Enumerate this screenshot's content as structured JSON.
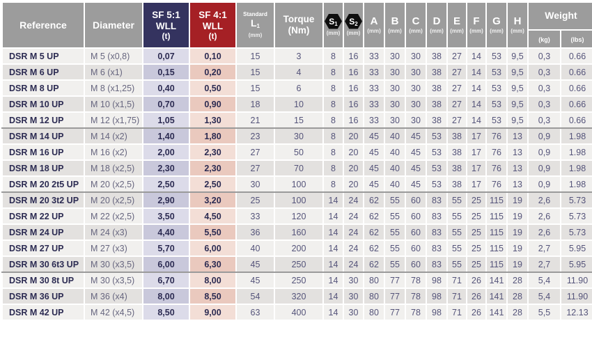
{
  "colors": {
    "header_gray": "#9c9c9c",
    "sf5_navy": "#34335f",
    "sf4_red": "#a52025",
    "sf5_cell_odd": "#dcdbe9",
    "sf5_cell_even": "#c9c8db",
    "sf4_cell_odd": "#f3ded6",
    "sf4_cell_even": "#eac9be",
    "row_odd": "#f1f0ee",
    "row_even": "#e3e1df",
    "text_dark_navy": "#2c2b52",
    "text_value": "#55547a",
    "group_divider": "#9a9a9a"
  },
  "table": {
    "headers": {
      "reference": "Reference",
      "diameter": "Diameter",
      "sf5": {
        "line1": "SF 5:1",
        "line2": "WLL",
        "line3": "(t)"
      },
      "sf4": {
        "line1": "SF 4:1",
        "line2": "WLL",
        "line3": "(t)"
      },
      "l1": {
        "top": "Standard",
        "label": "L",
        "sub": "1",
        "unit": "(mm)"
      },
      "torque": {
        "line1": "Torque",
        "line2": "(Nm)"
      },
      "s1": {
        "label": "S",
        "sub": "1",
        "unit": "(mm)"
      },
      "s2": {
        "label": "S",
        "sub": "2",
        "unit": "(mm)"
      },
      "dims": [
        "A",
        "B",
        "C",
        "D",
        "E",
        "F",
        "G",
        "H"
      ],
      "dim_unit": "(mm)",
      "weight": {
        "label": "Weight",
        "kg": "(kg)",
        "lbs": "(lbs)"
      }
    },
    "rows": [
      {
        "reference": "DSR M 5 UP",
        "diameter": "M 5 (x0,8)",
        "sf5_wll": "0,07",
        "sf4_wll": "0,10",
        "l1": "15",
        "torque": "3",
        "s1": "8",
        "s2": "16",
        "a": "33",
        "b": "30",
        "c": "30",
        "d": "38",
        "e": "27",
        "f": "14",
        "g": "53",
        "h": "9,5",
        "kg": "0,3",
        "lbs": "0.66",
        "group": 1
      },
      {
        "reference": "DSR M 6 UP",
        "diameter": "M 6 (x1)",
        "sf5_wll": "0,15",
        "sf4_wll": "0,20",
        "l1": "15",
        "torque": "4",
        "s1": "8",
        "s2": "16",
        "a": "33",
        "b": "30",
        "c": "30",
        "d": "38",
        "e": "27",
        "f": "14",
        "g": "53",
        "h": "9,5",
        "kg": "0,3",
        "lbs": "0.66",
        "group": 1
      },
      {
        "reference": "DSR M 8 UP",
        "diameter": "M 8 (x1,25)",
        "sf5_wll": "0,40",
        "sf4_wll": "0,50",
        "l1": "15",
        "torque": "6",
        "s1": "8",
        "s2": "16",
        "a": "33",
        "b": "30",
        "c": "30",
        "d": "38",
        "e": "27",
        "f": "14",
        "g": "53",
        "h": "9,5",
        "kg": "0,3",
        "lbs": "0.66",
        "group": 1
      },
      {
        "reference": "DSR M 10 UP",
        "diameter": "M 10 (x1,5)",
        "sf5_wll": "0,70",
        "sf4_wll": "0,90",
        "l1": "18",
        "torque": "10",
        "s1": "8",
        "s2": "16",
        "a": "33",
        "b": "30",
        "c": "30",
        "d": "38",
        "e": "27",
        "f": "14",
        "g": "53",
        "h": "9,5",
        "kg": "0,3",
        "lbs": "0.66",
        "group": 1
      },
      {
        "reference": "DSR M 12 UP",
        "diameter": "M 12 (x1,75)",
        "sf5_wll": "1,05",
        "sf4_wll": "1,30",
        "l1": "21",
        "torque": "15",
        "s1": "8",
        "s2": "16",
        "a": "33",
        "b": "30",
        "c": "30",
        "d": "38",
        "e": "27",
        "f": "14",
        "g": "53",
        "h": "9,5",
        "kg": "0,3",
        "lbs": "0.66",
        "group": 1
      },
      {
        "reference": "DSR M 14 UP",
        "diameter": "M 14 (x2)",
        "sf5_wll": "1,40",
        "sf4_wll": "1,80",
        "l1": "23",
        "torque": "30",
        "s1": "8",
        "s2": "20",
        "a": "45",
        "b": "40",
        "c": "45",
        "d": "53",
        "e": "38",
        "f": "17",
        "g": "76",
        "h": "13",
        "kg": "0,9",
        "lbs": "1.98",
        "group": 2
      },
      {
        "reference": "DSR M 16 UP",
        "diameter": "M 16 (x2)",
        "sf5_wll": "2,00",
        "sf4_wll": "2,30",
        "l1": "27",
        "torque": "50",
        "s1": "8",
        "s2": "20",
        "a": "45",
        "b": "40",
        "c": "45",
        "d": "53",
        "e": "38",
        "f": "17",
        "g": "76",
        "h": "13",
        "kg": "0,9",
        "lbs": "1.98",
        "group": 2
      },
      {
        "reference": "DSR M 18 UP",
        "diameter": "M 18 (x2,5)",
        "sf5_wll": "2,30",
        "sf4_wll": "2,30",
        "l1": "27",
        "torque": "70",
        "s1": "8",
        "s2": "20",
        "a": "45",
        "b": "40",
        "c": "45",
        "d": "53",
        "e": "38",
        "f": "17",
        "g": "76",
        "h": "13",
        "kg": "0,9",
        "lbs": "1.98",
        "group": 2
      },
      {
        "reference": "DSR M 20 2t5 UP",
        "diameter": "M 20 (x2,5)",
        "sf5_wll": "2,50",
        "sf4_wll": "2,50",
        "l1": "30",
        "torque": "100",
        "s1": "8",
        "s2": "20",
        "a": "45",
        "b": "40",
        "c": "45",
        "d": "53",
        "e": "38",
        "f": "17",
        "g": "76",
        "h": "13",
        "kg": "0,9",
        "lbs": "1.98",
        "group": 2
      },
      {
        "reference": "DSR M 20 3t2 UP",
        "diameter": "M 20 (x2,5)",
        "sf5_wll": "2,90",
        "sf4_wll": "3,20",
        "l1": "25",
        "torque": "100",
        "s1": "14",
        "s2": "24",
        "a": "62",
        "b": "55",
        "c": "60",
        "d": "83",
        "e": "55",
        "f": "25",
        "g": "115",
        "h": "19",
        "kg": "2,6",
        "lbs": "5.73",
        "group": 3
      },
      {
        "reference": "DSR M 22 UP",
        "diameter": "M 22 (x2,5)",
        "sf5_wll": "3,50",
        "sf4_wll": "4,50",
        "l1": "33",
        "torque": "120",
        "s1": "14",
        "s2": "24",
        "a": "62",
        "b": "55",
        "c": "60",
        "d": "83",
        "e": "55",
        "f": "25",
        "g": "115",
        "h": "19",
        "kg": "2,6",
        "lbs": "5.73",
        "group": 3
      },
      {
        "reference": "DSR M 24 UP",
        "diameter": "M 24 (x3)",
        "sf5_wll": "4,40",
        "sf4_wll": "5,50",
        "l1": "36",
        "torque": "160",
        "s1": "14",
        "s2": "24",
        "a": "62",
        "b": "55",
        "c": "60",
        "d": "83",
        "e": "55",
        "f": "25",
        "g": "115",
        "h": "19",
        "kg": "2,6",
        "lbs": "5.73",
        "group": 3
      },
      {
        "reference": "DSR M 27 UP",
        "diameter": "M 27 (x3)",
        "sf5_wll": "5,70",
        "sf4_wll": "6,00",
        "l1": "40",
        "torque": "200",
        "s1": "14",
        "s2": "24",
        "a": "62",
        "b": "55",
        "c": "60",
        "d": "83",
        "e": "55",
        "f": "25",
        "g": "115",
        "h": "19",
        "kg": "2,7",
        "lbs": "5.95",
        "group": 3
      },
      {
        "reference": "DSR M 30 6t3 UP",
        "diameter": "M 30 (x3,5)",
        "sf5_wll": "6,00",
        "sf4_wll": "6,30",
        "l1": "45",
        "torque": "250",
        "s1": "14",
        "s2": "24",
        "a": "62",
        "b": "55",
        "c": "60",
        "d": "83",
        "e": "55",
        "f": "25",
        "g": "115",
        "h": "19",
        "kg": "2,7",
        "lbs": "5.95",
        "group": 3
      },
      {
        "reference": "DSR M 30 8t UP",
        "diameter": "M 30 (x3,5)",
        "sf5_wll": "6,70",
        "sf4_wll": "8,00",
        "l1": "45",
        "torque": "250",
        "s1": "14",
        "s2": "30",
        "a": "80",
        "b": "77",
        "c": "78",
        "d": "98",
        "e": "71",
        "f": "26",
        "g": "141",
        "h": "28",
        "kg": "5,4",
        "lbs": "11.90",
        "group": 4
      },
      {
        "reference": "DSR M 36 UP",
        "diameter": "M 36 (x4)",
        "sf5_wll": "8,00",
        "sf4_wll": "8,50",
        "l1": "54",
        "torque": "320",
        "s1": "14",
        "s2": "30",
        "a": "80",
        "b": "77",
        "c": "78",
        "d": "98",
        "e": "71",
        "f": "26",
        "g": "141",
        "h": "28",
        "kg": "5,4",
        "lbs": "11.90",
        "group": 4
      },
      {
        "reference": "DSR M 42 UP",
        "diameter": "M 42 (x4,5)",
        "sf5_wll": "8,50",
        "sf4_wll": "9,00",
        "l1": "63",
        "torque": "400",
        "s1": "14",
        "s2": "30",
        "a": "80",
        "b": "77",
        "c": "78",
        "d": "98",
        "e": "71",
        "f": "26",
        "g": "141",
        "h": "28",
        "kg": "5,5",
        "lbs": "12.13",
        "group": 4
      }
    ]
  }
}
